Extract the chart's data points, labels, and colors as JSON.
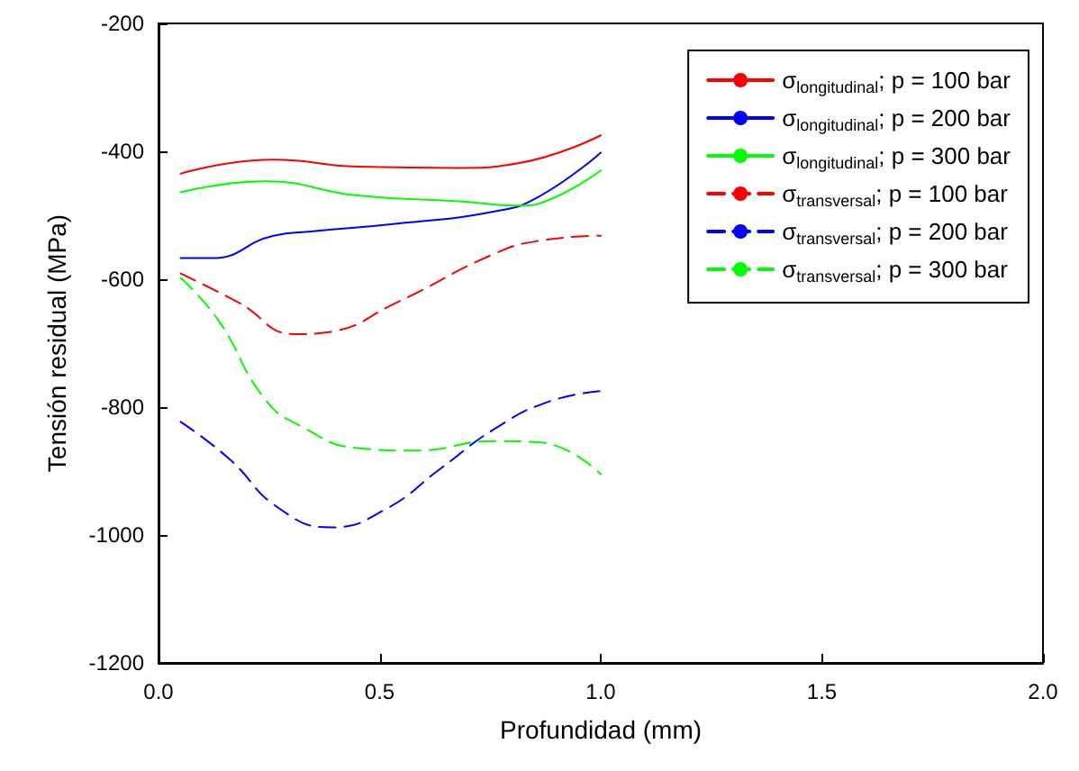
{
  "chart_data": {
    "type": "line",
    "xlabel": "Profundidad (mm)",
    "ylabel": "Tensión residual (MPa)",
    "xlim": [
      0,
      2
    ],
    "xticks": [
      {
        "value": 0,
        "label": "0.0"
      },
      {
        "value": 0.5,
        "label": "0.5"
      },
      {
        "value": 1,
        "label": "1.0"
      },
      {
        "value": 1.5,
        "label": "1.5"
      },
      {
        "value": 2,
        "label": "2.0"
      }
    ],
    "ylim": [
      -1200,
      -200
    ],
    "yticks": [
      -1200,
      -1000,
      -800,
      -600,
      -400,
      -200
    ],
    "grid": false,
    "legend": "top right",
    "marker": "none",
    "series": [
      {
        "name": "σ$_{longitudinal}$; p = 100 bar",
        "color": "#ff0000",
        "line_style": "solid",
        "x": [
          0.05,
          0.26,
          0.45,
          0.68,
          0.81,
          1.0
        ],
        "values": [
          -435,
          -413,
          -424,
          -426,
          -419,
          -375
        ]
      },
      {
        "name": "σ$_{longitudinal}$; p = 200 bar",
        "color": "#0000ff",
        "line_style": "solid",
        "x": [
          0.05,
          0.12,
          0.26,
          0.35,
          0.54,
          0.76,
          0.86,
          1.0
        ],
        "values": [
          -567,
          -567,
          -532,
          -525,
          -513,
          -494,
          -471,
          -402
        ]
      },
      {
        "name": "σ$_{longitudinal}$; p = 300 bar",
        "color": "#00ff00",
        "line_style": "solid",
        "x": [
          0.05,
          0.24,
          0.45,
          0.68,
          0.81,
          0.89,
          1.0
        ],
        "values": [
          -464,
          -447,
          -469,
          -478,
          -485,
          -474,
          -430
        ]
      },
      {
        "name": "σ$_{transversal}$; p = 100 bar",
        "color": "#ff0000",
        "line_style": "dashed",
        "x": [
          0.05,
          0.18,
          0.31,
          0.38,
          0.54,
          0.76,
          0.86,
          1.0
        ],
        "values": [
          -591,
          -636,
          -686,
          -683,
          -636,
          -560,
          -540,
          -532
        ]
      },
      {
        "name": "σ$_{transversal}$; p = 200 bar",
        "color": "#0000ff",
        "line_style": "dashed",
        "x": [
          0.05,
          0.16,
          0.27,
          0.39,
          0.51,
          0.64,
          0.76,
          0.88,
          1.0
        ],
        "values": [
          -823,
          -881,
          -957,
          -988,
          -961,
          -895,
          -834,
          -792,
          -775
        ]
      },
      {
        "name": "σ$_{transversal}$; p = 300 bar",
        "color": "#00ff00",
        "line_style": "dashed",
        "x": [
          0.05,
          0.135,
          0.24,
          0.32,
          0.45,
          0.58,
          0.76,
          0.86,
          1.0
        ],
        "values": [
          -598,
          -664,
          -787,
          -829,
          -864,
          -868,
          -853,
          -855,
          -905
        ]
      }
    ]
  }
}
